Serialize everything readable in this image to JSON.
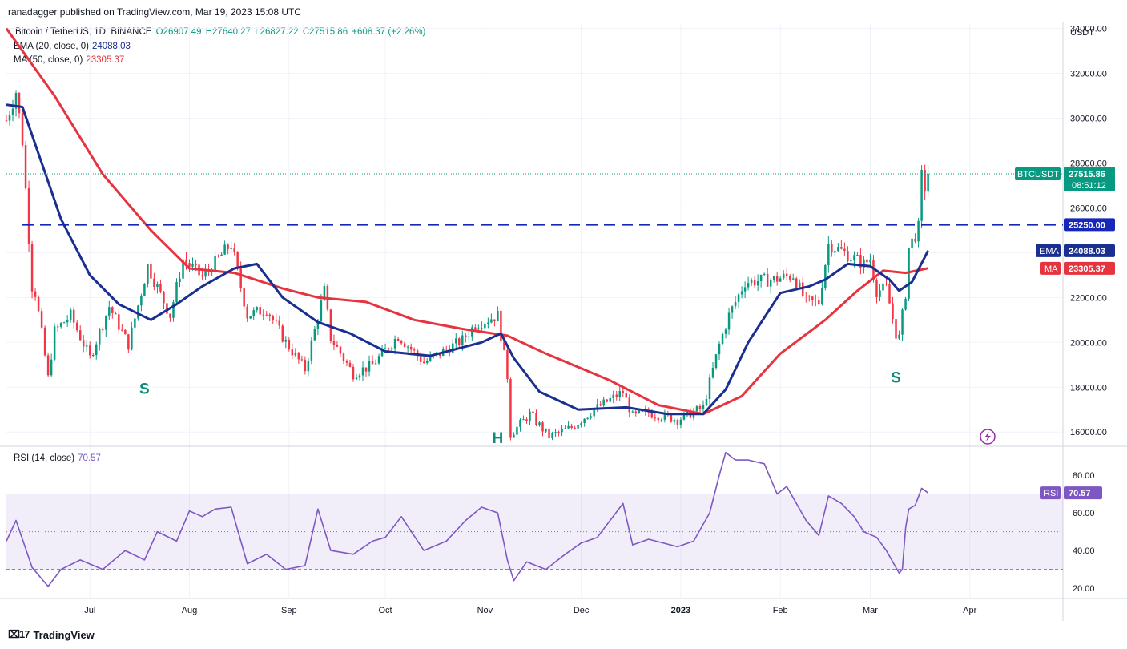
{
  "header": {
    "published": "ranadagger published on TradingView.com, Mar 19, 2023 15:08 UTC"
  },
  "legend": {
    "symbol": "Bitcoin / TetherUS, 1D, BINANCE",
    "open": "O26907.49",
    "high": "H27640.27",
    "low": "L26827.22",
    "close": "C27515.86",
    "change": "+608.37 (+2.26%)",
    "ema_label": "EMA (20, close, 0)",
    "ema_value": "24088.03",
    "ma_label": "MA (50, close, 0)",
    "ma_value": "23305.37",
    "rsi_label": "RSI (14, close)",
    "rsi_value": "70.57"
  },
  "footer": {
    "brand": "TradingView"
  },
  "colors": {
    "up": "#089981",
    "down": "#f23645",
    "ema": "#1a2f8f",
    "ma": "#e5343f",
    "rsi": "#7e57c2",
    "support": "#1727b8",
    "pattern": "#0e8a79"
  },
  "chart_data": [
    {
      "type": "candlestick",
      "title": "Bitcoin / TetherUS, 1D, BINANCE",
      "unit_label": "USDT",
      "price_ticks": [
        "34000.00",
        "32000.00",
        "30000.00",
        "28000.00",
        "26000.00",
        "24000.00",
        "22000.00",
        "20000.00",
        "18000.00",
        "16000.00"
      ],
      "y_range": [
        15400,
        34200
      ],
      "x_labels": [
        "Jul",
        "Aug",
        "Sep",
        "Oct",
        "Nov",
        "Dec",
        "2023",
        "Feb",
        "Mar",
        "Apr"
      ],
      "x_label_dates": [
        "2022-07-01",
        "2022-08-01",
        "2022-09-01",
        "2022-10-01",
        "2022-11-01",
        "2022-12-01",
        "2023-01-01",
        "2023-02-01",
        "2023-03-01",
        "2023-04-01"
      ],
      "x_range": [
        "2022-06-05",
        "2023-04-30"
      ],
      "close_path": [
        [
          "2022-06-05",
          29900
        ],
        [
          "2022-06-08",
          31200
        ],
        [
          "2022-06-10",
          29000
        ],
        [
          "2022-06-13",
          22500
        ],
        [
          "2022-06-14",
          22200
        ],
        [
          "2022-06-16",
          20400
        ],
        [
          "2022-06-18",
          18400
        ],
        [
          "2022-06-20",
          20500
        ],
        [
          "2022-06-25",
          21200
        ],
        [
          "2022-07-01",
          19300
        ],
        [
          "2022-07-07",
          21600
        ],
        [
          "2022-07-13",
          19900
        ],
        [
          "2022-07-19",
          23400
        ],
        [
          "2022-07-26",
          21200
        ],
        [
          "2022-07-30",
          23700
        ],
        [
          "2022-08-05",
          22900
        ],
        [
          "2022-08-14",
          24400
        ],
        [
          "2022-08-19",
          21200
        ],
        [
          "2022-08-25",
          21500
        ],
        [
          "2022-08-31",
          20000
        ],
        [
          "2022-09-06",
          18800
        ],
        [
          "2022-09-12",
          22300
        ],
        [
          "2022-09-14",
          20200
        ],
        [
          "2022-09-21",
          18600
        ],
        [
          "2022-09-27",
          19000
        ],
        [
          "2022-10-05",
          20300
        ],
        [
          "2022-10-13",
          19100
        ],
        [
          "2022-10-25",
          20100
        ],
        [
          "2022-10-29",
          20800
        ],
        [
          "2022-11-05",
          21200
        ],
        [
          "2022-11-08",
          18500
        ],
        [
          "2022-11-09",
          15900
        ],
        [
          "2022-11-15",
          16800
        ],
        [
          "2022-11-21",
          15800
        ],
        [
          "2022-11-28",
          16200
        ],
        [
          "2022-12-05",
          17000
        ],
        [
          "2022-12-14",
          17800
        ],
        [
          "2022-12-17",
          16700
        ],
        [
          "2022-12-22",
          16850
        ],
        [
          "2022-12-31",
          16550
        ],
        [
          "2023-01-08",
          17100
        ],
        [
          "2023-01-13",
          19900
        ],
        [
          "2023-01-16",
          21200
        ],
        [
          "2023-01-21",
          22700
        ],
        [
          "2023-01-30",
          22800
        ],
        [
          "2023-02-05",
          23000
        ],
        [
          "2023-02-09",
          21800
        ],
        [
          "2023-02-13",
          21800
        ],
        [
          "2023-02-16",
          24400
        ],
        [
          "2023-02-21",
          24000
        ],
        [
          "2023-02-27",
          23500
        ],
        [
          "2023-03-01",
          23700
        ],
        [
          "2023-03-03",
          22300
        ],
        [
          "2023-03-06",
          22400
        ],
        [
          "2023-03-09",
          20400
        ],
        [
          "2023-03-10",
          20200
        ],
        [
          "2023-03-12",
          22200
        ],
        [
          "2023-03-13",
          24200
        ],
        [
          "2023-03-16",
          25100
        ],
        [
          "2023-03-17",
          27400
        ],
        [
          "2023-03-18",
          26900
        ],
        [
          "2023-03-19",
          27515.86
        ]
      ],
      "ema20": [
        [
          "2022-06-05",
          30600
        ],
        [
          "2022-06-10",
          30500
        ],
        [
          "2022-06-16",
          28000
        ],
        [
          "2022-06-22",
          25500
        ],
        [
          "2022-07-01",
          23000
        ],
        [
          "2022-07-10",
          21700
        ],
        [
          "2022-07-20",
          21000
        ],
        [
          "2022-07-28",
          21700
        ],
        [
          "2022-08-05",
          22500
        ],
        [
          "2022-08-15",
          23300
        ],
        [
          "2022-08-22",
          23500
        ],
        [
          "2022-08-30",
          22000
        ],
        [
          "2022-09-10",
          20900
        ],
        [
          "2022-09-20",
          20400
        ],
        [
          "2022-10-01",
          19600
        ],
        [
          "2022-10-15",
          19400
        ],
        [
          "2022-10-31",
          20000
        ],
        [
          "2022-11-06",
          20400
        ],
        [
          "2022-11-10",
          19300
        ],
        [
          "2022-11-18",
          17800
        ],
        [
          "2022-11-30",
          17000
        ],
        [
          "2022-12-15",
          17100
        ],
        [
          "2022-12-28",
          16800
        ],
        [
          "2023-01-08",
          16800
        ],
        [
          "2023-01-15",
          17900
        ],
        [
          "2023-01-22",
          20000
        ],
        [
          "2023-02-01",
          22200
        ],
        [
          "2023-02-10",
          22500
        ],
        [
          "2023-02-15",
          22800
        ],
        [
          "2023-02-22",
          23500
        ],
        [
          "2023-03-01",
          23400
        ],
        [
          "2023-03-07",
          22800
        ],
        [
          "2023-03-10",
          22300
        ],
        [
          "2023-03-14",
          22700
        ],
        [
          "2023-03-19",
          24088.03
        ]
      ],
      "ma50": [
        [
          "2022-06-05",
          34000
        ],
        [
          "2022-06-20",
          31000
        ],
        [
          "2022-07-05",
          27500
        ],
        [
          "2022-07-20",
          25000
        ],
        [
          "2022-08-01",
          23300
        ],
        [
          "2022-08-15",
          23100
        ],
        [
          "2022-08-30",
          22400
        ],
        [
          "2022-09-10",
          22000
        ],
        [
          "2022-09-25",
          21800
        ],
        [
          "2022-10-10",
          21000
        ],
        [
          "2022-10-25",
          20600
        ],
        [
          "2022-11-08",
          20300
        ],
        [
          "2022-11-20",
          19500
        ],
        [
          "2022-12-10",
          18300
        ],
        [
          "2022-12-25",
          17200
        ],
        [
          "2023-01-08",
          16800
        ],
        [
          "2023-01-20",
          17600
        ],
        [
          "2023-02-01",
          19500
        ],
        [
          "2023-02-15",
          21000
        ],
        [
          "2023-02-25",
          22300
        ],
        [
          "2023-03-05",
          23200
        ],
        [
          "2023-03-12",
          23100
        ],
        [
          "2023-03-19",
          23305.37
        ]
      ],
      "support_level": 25250,
      "price_tags": {
        "last": "27515.86",
        "countdown": "08:51:12",
        "support": "25250.00",
        "ema": "24088.03",
        "ma": "23305.37",
        "symbol": "BTCUSDT",
        "ema_tag": "EMA",
        "ma_tag": "MA"
      },
      "annotations": [
        {
          "text": "S",
          "date": "2022-07-18",
          "price": 17700
        },
        {
          "text": "H",
          "date": "2022-11-05",
          "price": 15500
        },
        {
          "text": "S",
          "date": "2023-03-09",
          "price": 18200
        }
      ]
    },
    {
      "type": "line",
      "title": "RSI (14, close)",
      "y_ticks": [
        "80.00",
        "60.00",
        "40.00",
        "20.00"
      ],
      "y_range": [
        15,
        94
      ],
      "band": [
        30,
        70
      ],
      "midline": 50,
      "last_tag": {
        "label": "RSI",
        "value": "70.57"
      },
      "series": [
        [
          "2022-06-05",
          45
        ],
        [
          "2022-06-08",
          56
        ],
        [
          "2022-06-13",
          31
        ],
        [
          "2022-06-16",
          25
        ],
        [
          "2022-06-18",
          21
        ],
        [
          "2022-06-22",
          30
        ],
        [
          "2022-06-28",
          35
        ],
        [
          "2022-07-05",
          30
        ],
        [
          "2022-07-12",
          40
        ],
        [
          "2022-07-18",
          35
        ],
        [
          "2022-07-22",
          50
        ],
        [
          "2022-07-28",
          45
        ],
        [
          "2022-08-01",
          61
        ],
        [
          "2022-08-05",
          58
        ],
        [
          "2022-08-09",
          62
        ],
        [
          "2022-08-14",
          63
        ],
        [
          "2022-08-19",
          33
        ],
        [
          "2022-08-25",
          38
        ],
        [
          "2022-08-31",
          30
        ],
        [
          "2022-09-06",
          32
        ],
        [
          "2022-09-10",
          62
        ],
        [
          "2022-09-14",
          40
        ],
        [
          "2022-09-21",
          38
        ],
        [
          "2022-09-27",
          45
        ],
        [
          "2022-10-01",
          47
        ],
        [
          "2022-10-06",
          58
        ],
        [
          "2022-10-13",
          40
        ],
        [
          "2022-10-20",
          45
        ],
        [
          "2022-10-26",
          56
        ],
        [
          "2022-10-31",
          63
        ],
        [
          "2022-11-05",
          60
        ],
        [
          "2022-11-08",
          35
        ],
        [
          "2022-11-10",
          24
        ],
        [
          "2022-11-14",
          34
        ],
        [
          "2022-11-20",
          30
        ],
        [
          "2022-11-26",
          38
        ],
        [
          "2022-12-01",
          44
        ],
        [
          "2022-12-06",
          47
        ],
        [
          "2022-12-14",
          65
        ],
        [
          "2022-12-17",
          43
        ],
        [
          "2022-12-22",
          46
        ],
        [
          "2022-12-31",
          42
        ],
        [
          "2023-01-05",
          45
        ],
        [
          "2023-01-10",
          60
        ],
        [
          "2023-01-13",
          80
        ],
        [
          "2023-01-15",
          92
        ],
        [
          "2023-01-18",
          88
        ],
        [
          "2023-01-22",
          88
        ],
        [
          "2023-01-27",
          86
        ],
        [
          "2023-01-31",
          70
        ],
        [
          "2023-02-03",
          74
        ],
        [
          "2023-02-09",
          56
        ],
        [
          "2023-02-13",
          48
        ],
        [
          "2023-02-16",
          69
        ],
        [
          "2023-02-20",
          65
        ],
        [
          "2023-02-24",
          58
        ],
        [
          "2023-02-27",
          50
        ],
        [
          "2023-03-03",
          47
        ],
        [
          "2023-03-06",
          40
        ],
        [
          "2023-03-10",
          28
        ],
        [
          "2023-03-11",
          30
        ],
        [
          "2023-03-12",
          52
        ],
        [
          "2023-03-13",
          62
        ],
        [
          "2023-03-15",
          64
        ],
        [
          "2023-03-17",
          73
        ],
        [
          "2023-03-19",
          70.57
        ]
      ]
    }
  ]
}
